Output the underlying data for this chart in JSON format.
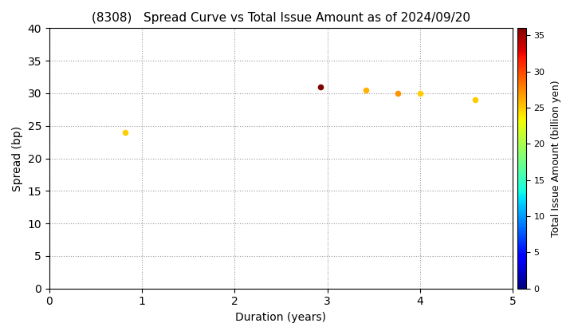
{
  "title": "(8308)   Spread Curve vs Total Issue Amount as of 2024/09/20",
  "xlabel": "Duration (years)",
  "ylabel": "Spread (bp)",
  "colorbar_label": "Total Issue Amount (billion yen)",
  "xlim": [
    0,
    5
  ],
  "ylim": [
    0,
    40
  ],
  "xticks": [
    0,
    1,
    2,
    3,
    4,
    5
  ],
  "yticks": [
    0,
    5,
    10,
    15,
    20,
    25,
    30,
    35,
    40
  ],
  "points": [
    {
      "duration": 0.82,
      "spread": 24,
      "amount": 25
    },
    {
      "duration": 2.93,
      "spread": 31,
      "amount": 36
    },
    {
      "duration": 3.42,
      "spread": 30.5,
      "amount": 26
    },
    {
      "duration": 3.76,
      "spread": 30,
      "amount": 27
    },
    {
      "duration": 4.0,
      "spread": 30,
      "amount": 25
    },
    {
      "duration": 4.6,
      "spread": 29,
      "amount": 25
    }
  ],
  "cmap": "jet",
  "clim_min": 0,
  "clim_max": 36,
  "cbar_ticks": [
    0,
    5,
    10,
    15,
    20,
    25,
    30,
    35
  ],
  "marker_size": 30,
  "background_color": "#ffffff",
  "grid_color": "#999999",
  "grid_style": ":",
  "title_fontsize": 11,
  "label_fontsize": 10,
  "cbar_label_fontsize": 9,
  "figwidth": 7.2,
  "figheight": 4.2,
  "dpi": 100
}
